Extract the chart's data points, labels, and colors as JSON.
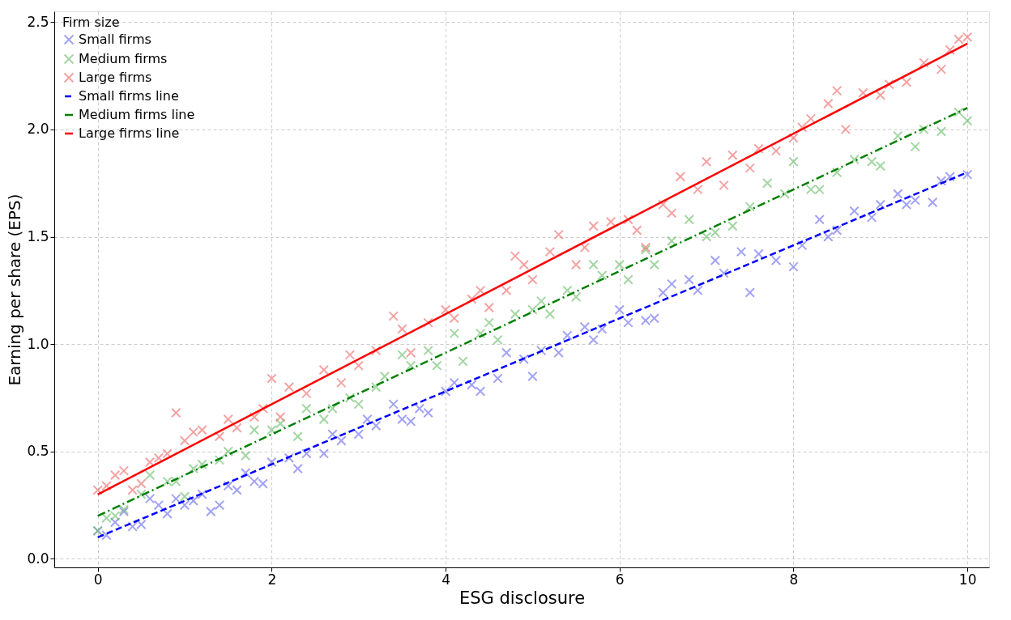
{
  "chart_data": {
    "type": "scatter",
    "xlabel": "ESG disclosure",
    "ylabel": "Earning per share (EPS)",
    "legend_title": "Firm size",
    "legend": "top left",
    "grid": true,
    "xlim": [
      -0.5,
      10.25
    ],
    "ylim": [
      -0.04,
      2.55
    ],
    "xticks": [
      0,
      2,
      4,
      6,
      8,
      10
    ],
    "yticks": [
      {
        "value": 0,
        "label": "0.0"
      },
      0.5,
      {
        "value": 1,
        "label": "1.0"
      },
      1.5,
      {
        "value": 2,
        "label": "2.0"
      },
      2.5
    ],
    "series": [
      {
        "name": "Small firms",
        "marker": "cross",
        "color": "#6666ee",
        "x": [
          0,
          0.1,
          0.2,
          0.3,
          0.4,
          0.5,
          0.6,
          0.7,
          0.8,
          0.9,
          1.0,
          1.1,
          1.2,
          1.3,
          1.4,
          1.5,
          1.6,
          1.7,
          1.8,
          1.9,
          2.0,
          2.2,
          2.3,
          2.4,
          2.6,
          2.7,
          2.8,
          3.0,
          3.1,
          3.2,
          3.4,
          3.5,
          3.6,
          3.7,
          3.8,
          4.0,
          4.1,
          4.3,
          4.4,
          4.6,
          4.7,
          4.9,
          5.0,
          5.1,
          5.3,
          5.4,
          5.6,
          5.7,
          5.8,
          6.0,
          6.1,
          6.3,
          6.4,
          6.5,
          6.6,
          6.8,
          6.9,
          7.1,
          7.2,
          7.4,
          7.5,
          7.6,
          7.8,
          8.0,
          8.1,
          8.3,
          8.4,
          8.5,
          8.7,
          8.9,
          9.0,
          9.2,
          9.3,
          9.4,
          9.6,
          9.7,
          9.8,
          10.0
        ],
        "values": [
          0.13,
          0.11,
          0.17,
          0.22,
          0.15,
          0.16,
          0.28,
          0.25,
          0.21,
          0.28,
          0.25,
          0.27,
          0.3,
          0.22,
          0.25,
          0.34,
          0.32,
          0.4,
          0.36,
          0.35,
          0.45,
          0.47,
          0.42,
          0.49,
          0.49,
          0.58,
          0.55,
          0.58,
          0.65,
          0.62,
          0.72,
          0.65,
          0.64,
          0.7,
          0.68,
          0.78,
          0.82,
          0.81,
          0.78,
          0.84,
          0.96,
          0.93,
          0.85,
          0.97,
          0.96,
          1.04,
          1.08,
          1.02,
          1.07,
          1.16,
          1.1,
          1.11,
          1.12,
          1.24,
          1.28,
          1.3,
          1.25,
          1.39,
          1.33,
          1.43,
          1.24,
          1.42,
          1.39,
          1.36,
          1.46,
          1.58,
          1.5,
          1.53,
          1.62,
          1.59,
          1.65,
          1.7,
          1.65,
          1.67,
          1.66,
          1.76,
          1.78,
          1.79
        ]
      },
      {
        "name": "Medium firms",
        "marker": "cross",
        "color": "#66bb66",
        "x": [
          0,
          0.1,
          0.2,
          0.3,
          0.5,
          0.6,
          0.8,
          0.9,
          1.0,
          1.1,
          1.2,
          1.4,
          1.5,
          1.7,
          1.8,
          2.0,
          2.1,
          2.3,
          2.4,
          2.6,
          2.7,
          2.9,
          3.0,
          3.2,
          3.3,
          3.5,
          3.6,
          3.8,
          3.9,
          4.1,
          4.2,
          4.4,
          4.5,
          4.6,
          4.8,
          5.0,
          5.1,
          5.2,
          5.4,
          5.5,
          5.7,
          5.8,
          6.0,
          6.1,
          6.3,
          6.4,
          6.6,
          6.8,
          7.0,
          7.1,
          7.3,
          7.5,
          7.7,
          7.9,
          8.0,
          8.2,
          8.3,
          8.5,
          8.7,
          8.9,
          9.0,
          9.2,
          9.4,
          9.5,
          9.7,
          9.9,
          10.0
        ],
        "values": [
          0.13,
          0.19,
          0.2,
          0.23,
          0.3,
          0.39,
          0.36,
          0.36,
          0.29,
          0.42,
          0.44,
          0.46,
          0.5,
          0.48,
          0.6,
          0.6,
          0.63,
          0.57,
          0.7,
          0.65,
          0.7,
          0.75,
          0.72,
          0.8,
          0.85,
          0.95,
          0.9,
          0.97,
          0.9,
          1.05,
          0.92,
          1.05,
          1.1,
          1.02,
          1.14,
          1.16,
          1.2,
          1.14,
          1.25,
          1.22,
          1.37,
          1.32,
          1.37,
          1.3,
          1.44,
          1.37,
          1.48,
          1.58,
          1.5,
          1.52,
          1.55,
          1.64,
          1.75,
          1.7,
          1.85,
          1.72,
          1.72,
          1.8,
          1.86,
          1.85,
          1.83,
          1.97,
          1.92,
          2.0,
          1.99,
          2.08,
          2.04
        ]
      },
      {
        "name": "Large firms",
        "marker": "cross",
        "color": "#ee6666",
        "x": [
          0,
          0.1,
          0.2,
          0.3,
          0.4,
          0.5,
          0.6,
          0.7,
          0.8,
          0.9,
          1.0,
          1.1,
          1.2,
          1.4,
          1.5,
          1.6,
          1.8,
          1.9,
          2.0,
          2.1,
          2.2,
          2.4,
          2.6,
          2.8,
          2.9,
          3.0,
          3.2,
          3.4,
          3.5,
          3.6,
          3.8,
          4.0,
          4.1,
          4.3,
          4.4,
          4.5,
          4.7,
          4.8,
          4.9,
          5.0,
          5.2,
          5.3,
          5.5,
          5.6,
          5.7,
          5.9,
          6.1,
          6.2,
          6.3,
          6.5,
          6.6,
          6.7,
          6.9,
          7.0,
          7.2,
          7.3,
          7.5,
          7.6,
          7.8,
          8.0,
          8.1,
          8.2,
          8.4,
          8.5,
          8.6,
          8.8,
          9.0,
          9.1,
          9.3,
          9.5,
          9.7,
          9.8,
          9.9,
          10.0
        ],
        "values": [
          0.32,
          0.34,
          0.39,
          0.41,
          0.32,
          0.35,
          0.45,
          0.47,
          0.49,
          0.68,
          0.55,
          0.59,
          0.6,
          0.57,
          0.65,
          0.61,
          0.66,
          0.7,
          0.84,
          0.66,
          0.8,
          0.77,
          0.88,
          0.82,
          0.95,
          0.9,
          0.97,
          1.13,
          1.07,
          0.96,
          1.1,
          1.16,
          1.12,
          1.21,
          1.25,
          1.17,
          1.25,
          1.41,
          1.37,
          1.3,
          1.43,
          1.51,
          1.37,
          1.45,
          1.55,
          1.57,
          1.58,
          1.53,
          1.45,
          1.65,
          1.61,
          1.78,
          1.72,
          1.85,
          1.74,
          1.88,
          1.82,
          1.91,
          1.9,
          1.96,
          2.01,
          2.05,
          2.12,
          2.18,
          2.0,
          2.17,
          2.16,
          2.21,
          2.22,
          2.31,
          2.28,
          2.37,
          2.42,
          2.43
        ]
      },
      {
        "name": "Small firms line",
        "type": "line",
        "line_style": "dashed",
        "color": "#0000ff",
        "x": [
          0,
          10
        ],
        "values": [
          0.1,
          1.8
        ]
      },
      {
        "name": "Medium firms line",
        "type": "line",
        "line_style": "dashdot",
        "color": "#008000",
        "x": [
          0,
          10
        ],
        "values": [
          0.2,
          2.1
        ]
      },
      {
        "name": "Large firms line",
        "type": "line",
        "line_style": "solid",
        "color": "#ff0000",
        "x": [
          0,
          10
        ],
        "values": [
          0.3,
          2.4
        ]
      }
    ]
  }
}
